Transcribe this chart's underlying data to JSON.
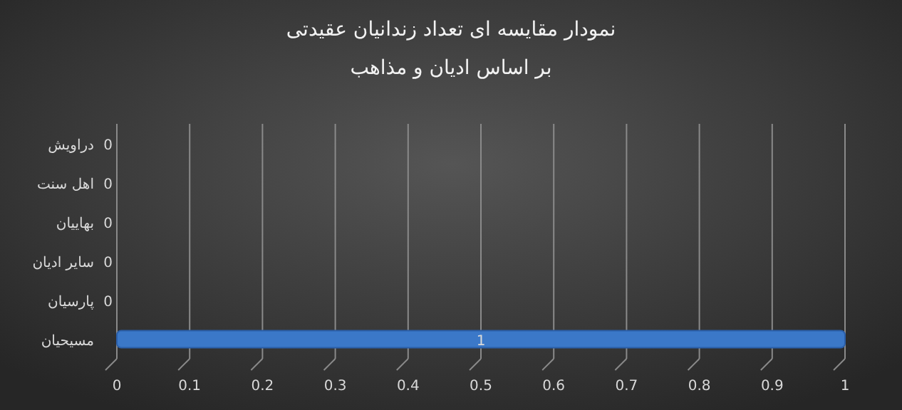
{
  "chart_data": {
    "type": "bar",
    "orientation": "horizontal",
    "title": "نمودار مقایسه ای تعداد زندانیان عقیدتی",
    "subtitle": "بر اساس ادیان و مذاهب",
    "categories": [
      "دراویش",
      "اهل سنت",
      "بهاییان",
      "سایر ادیان",
      "پارسیان",
      "مسیحیان"
    ],
    "values": [
      0,
      0,
      0,
      0,
      0,
      1
    ],
    "color": "#3b78c8",
    "xlim": [
      0,
      1
    ],
    "xticks": [
      0,
      0.1,
      0.2,
      0.3,
      0.4,
      0.5,
      0.6,
      0.7,
      0.8,
      0.9,
      1
    ],
    "grid": "x",
    "data_labels": true
  }
}
